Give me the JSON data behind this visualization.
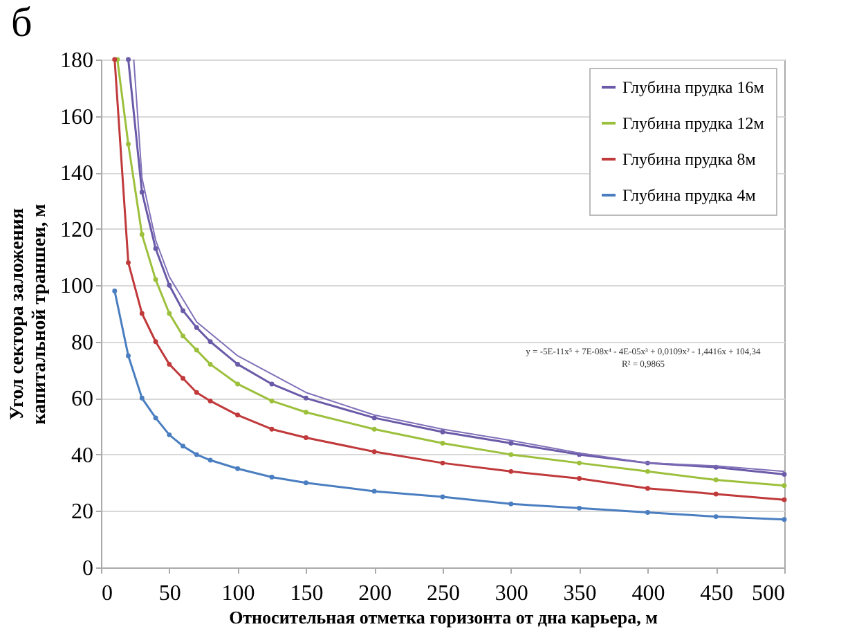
{
  "chart_data": {
    "type": "line",
    "xlabel": "Относительная отметка горизонта от дна карьера, м",
    "ylabel": "Угол сектора заложения капитальной  траншеи, м",
    "annotations": [
      "б",
      "y = -5E-11x⁵ + 7E-08x⁴ - 4E-05x³ + 0,0109x² - 1,4416x + 104,34",
      "R² = 0,9865"
    ],
    "xlim": [
      0,
      500
    ],
    "xticks": [
      0,
      50,
      100,
      150,
      200,
      250,
      300,
      350,
      400,
      450,
      500
    ],
    "ylim": [
      0,
      180
    ],
    "yticks": [
      0,
      20,
      40,
      60,
      80,
      100,
      120,
      140,
      160,
      180
    ],
    "grid": "y",
    "legend": "top right",
    "marker": "circle",
    "line_style": "solid",
    "series": [
      {
        "name": "Глубина прудка 16м",
        "color": "#6a5aa8",
        "x": [
          20,
          30,
          40,
          50,
          60,
          70,
          80,
          100,
          125,
          150,
          200,
          250,
          300,
          350,
          400,
          450,
          500
        ],
        "values": [
          180,
          133,
          113,
          100,
          91,
          85,
          80,
          72,
          65,
          60,
          53,
          48,
          44,
          40,
          37,
          35.5,
          33
        ]
      },
      {
        "name": "Глубина прудка 12м",
        "color": "#9cc03c",
        "x": [
          12,
          20,
          30,
          40,
          50,
          60,
          70,
          80,
          100,
          125,
          150,
          200,
          250,
          300,
          350,
          400,
          450,
          500
        ],
        "values": [
          180,
          150,
          118,
          102,
          90,
          82,
          77,
          72,
          65,
          59,
          55,
          49,
          44,
          40,
          37,
          34,
          31,
          29
        ]
      },
      {
        "name": "Глубина прудка 8м",
        "color": "#c0393b",
        "x": [
          10,
          20,
          30,
          40,
          50,
          60,
          70,
          80,
          100,
          125,
          150,
          200,
          250,
          300,
          350,
          400,
          450,
          500
        ],
        "values": [
          180,
          108,
          90,
          80,
          72,
          67,
          62,
          59,
          54,
          49,
          46,
          41,
          37,
          34,
          31.5,
          28,
          26,
          24
        ]
      },
      {
        "name": "Глубина прудка 4м",
        "color": "#4a7ec0",
        "x": [
          10,
          20,
          30,
          40,
          50,
          60,
          70,
          80,
          100,
          125,
          150,
          200,
          250,
          300,
          350,
          400,
          450,
          500
        ],
        "values": [
          98,
          75,
          60,
          53,
          47,
          43,
          40,
          38,
          35,
          32,
          30,
          27,
          25,
          22.5,
          21,
          19.5,
          18,
          17
        ]
      },
      {
        "type": "line",
        "marker": "none",
        "color": "#8070b8",
        "x": [
          24,
          30,
          40,
          50,
          70,
          100,
          150,
          200,
          250,
          300,
          350,
          400,
          450,
          500
        ],
        "values": [
          180,
          138,
          116,
          103,
          87,
          75,
          62,
          54,
          49,
          45,
          40.5,
          37,
          36,
          34
        ]
      }
    ]
  }
}
